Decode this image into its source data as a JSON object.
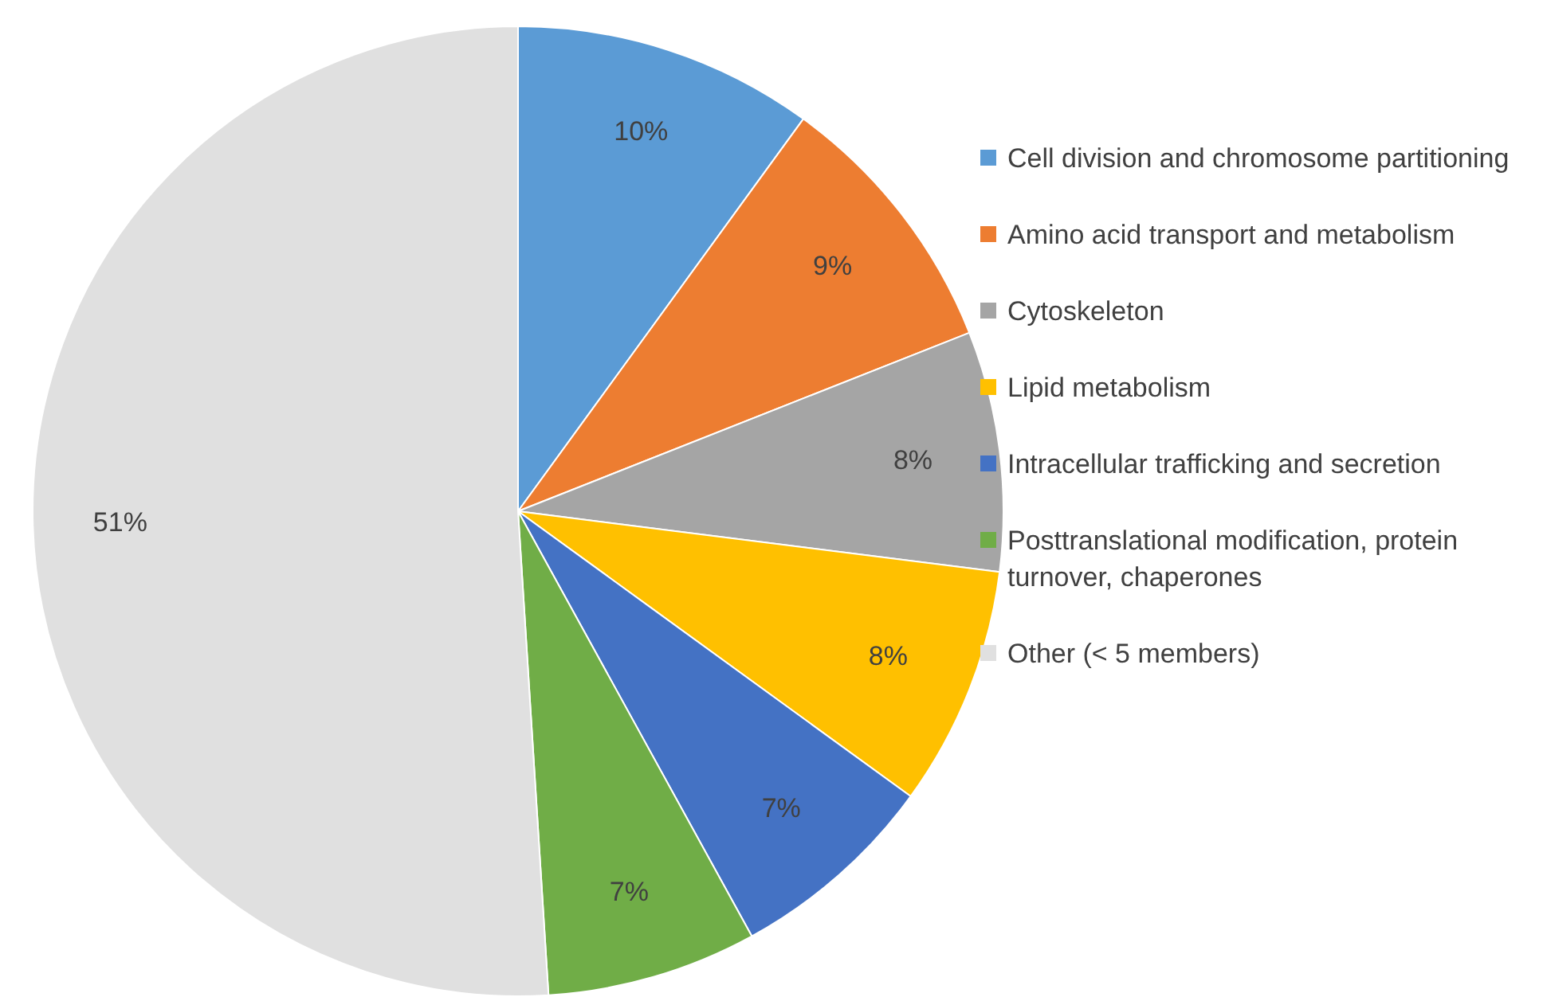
{
  "chart_data": {
    "type": "pie",
    "categories": [
      "Cell division and chromosome partitioning",
      "Amino acid transport and metabolism",
      "Cytoskeleton",
      "Lipid metabolism",
      "Intracellular trafficking and secretion",
      "Posttranslational modification, protein turnover, chaperones",
      "Other (< 5 members)"
    ],
    "values": [
      10,
      9,
      8,
      8,
      7,
      7,
      51
    ],
    "colors": [
      "#5b9bd5",
      "#ed7d31",
      "#a5a5a5",
      "#ffc000",
      "#4472c4",
      "#70ad47",
      "#e0e0e0"
    ],
    "value_labels": [
      "10%",
      "9%",
      "8%",
      "8%",
      "7%",
      "7%",
      "51%"
    ],
    "legend": "right"
  }
}
